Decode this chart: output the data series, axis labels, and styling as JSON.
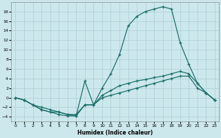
{
  "xlabel": "Humidex (Indice chaleur)",
  "bg_color": "#cce8ec",
  "grid_color": "#aacdd4",
  "line_color": "#1a6e6a",
  "xlim": [
    -0.5,
    23.5
  ],
  "ylim": [
    -5,
    20
  ],
  "yticks": [
    -4,
    -2,
    0,
    2,
    4,
    6,
    8,
    10,
    12,
    14,
    16,
    18
  ],
  "xticks": [
    0,
    1,
    2,
    3,
    4,
    5,
    6,
    7,
    8,
    9,
    10,
    11,
    12,
    13,
    14,
    15,
    16,
    17,
    18,
    19,
    20,
    21,
    22,
    23
  ],
  "line1_x": [
    0,
    1,
    2,
    3,
    4,
    5,
    6,
    7,
    8,
    9,
    10,
    11,
    12,
    13,
    14,
    15,
    16,
    17,
    18,
    19,
    20,
    21,
    22,
    23
  ],
  "line1_y": [
    0,
    -0.5,
    -1.5,
    -2,
    -2.5,
    -3,
    -3.5,
    -3.8,
    -1.5,
    -1.5,
    2,
    5,
    9,
    15,
    17,
    18,
    18.5,
    19,
    18.5,
    11.5,
    7,
    3,
    1,
    -0.5
  ],
  "line2_x": [
    0,
    1,
    2,
    3,
    4,
    5,
    6,
    7,
    8,
    9,
    10,
    11,
    12,
    13,
    14,
    15,
    16,
    17,
    18,
    19,
    20,
    21,
    22,
    23
  ],
  "line2_y": [
    0,
    -0.5,
    -1.5,
    -2.5,
    -3,
    -3.5,
    -3.8,
    -3.8,
    3.5,
    -1.5,
    0.5,
    1.5,
    2.5,
    3,
    3.5,
    3.8,
    4.2,
    4.5,
    5,
    5.5,
    5,
    3,
    1,
    -0.5
  ],
  "line3_x": [
    0,
    1,
    2,
    3,
    4,
    5,
    6,
    7,
    8,
    9,
    10,
    11,
    12,
    13,
    14,
    15,
    16,
    17,
    18,
    19,
    20,
    21,
    22,
    23
  ],
  "line3_y": [
    0,
    -0.5,
    -1.5,
    -2.5,
    -3,
    -3,
    -3.5,
    -3.5,
    -1.5,
    -1.5,
    0,
    0.5,
    1,
    1.5,
    2,
    2.5,
    3,
    3.5,
    4,
    4.5,
    4.5,
    2,
    1,
    -0.5
  ]
}
